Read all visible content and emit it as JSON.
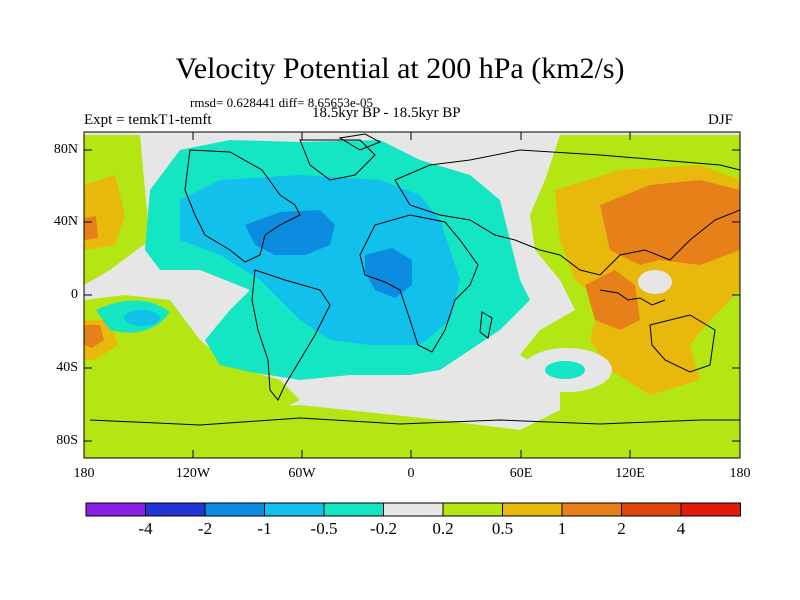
{
  "title": "Velocity Potential at 200 hPa (km2/s)",
  "stats": "rmsd= 0.628441 diff= 8.65653e-05",
  "subtitle": "18.5kyr BP - 18.5kyr BP",
  "expt_label": "Expt = temkT1-temft",
  "season": "DJF",
  "lat_labels": [
    "80N",
    "40N",
    "0",
    "40S",
    "80S"
  ],
  "lon_labels": [
    "180",
    "120W",
    "60W",
    "0",
    "60E",
    "120E",
    "180"
  ],
  "colorbar": {
    "labels": [
      "-4",
      "-2",
      "-1",
      "-0.5",
      "-0.2",
      "0.2",
      "0.5",
      "1",
      "2",
      "4"
    ],
    "colors": [
      "#8a1ee6",
      "#2233d8",
      "#0c8ce0",
      "#12c0ec",
      "#14e6c4",
      "#e6e6e6",
      "#b4e614",
      "#e8b80c",
      "#e8801a",
      "#e0460c",
      "#e01a0c"
    ]
  },
  "chart_data": {
    "type": "heatmap",
    "title": "Velocity Potential at 200 hPa (km2/s)",
    "variable": "Velocity Potential",
    "units": "km2/s",
    "level": "200 hPa",
    "x_range": [
      -180,
      180
    ],
    "y_range": [
      -90,
      90
    ],
    "contour_levels": [
      -4,
      -2,
      -1,
      -0.5,
      -0.2,
      0.2,
      0.5,
      1,
      2,
      4
    ],
    "regions": [
      {
        "name": "Atlantic/Americas/Africa negative region",
        "value_range": "-1 to -0.2"
      },
      {
        "name": "Central North Atlantic minimum",
        "value_range": "-2 to -1"
      },
      {
        "name": "Equatorial Africa minimum",
        "value_range": "-2 to -1"
      },
      {
        "name": "East Asia / Western Pacific maximum",
        "value_range": "1 to 2"
      },
      {
        "name": "Maritime Continent maximum",
        "value_range": "1 to 2"
      },
      {
        "name": "Central Pacific positive region",
        "value_range": "0.2 to 1"
      }
    ]
  }
}
